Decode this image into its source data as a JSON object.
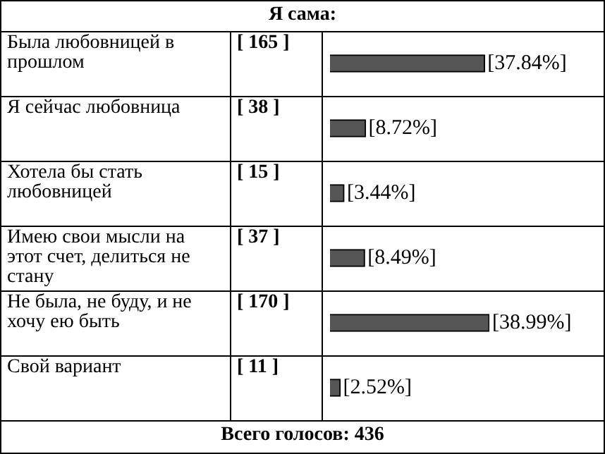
{
  "chart_data": {
    "type": "bar",
    "orientation": "horizontal",
    "title": "Я сама:",
    "categories": [
      "Была любовницей в прошлом",
      "Я сейчас любовница",
      "Хотела бы стать любовницей",
      "Имею свои мысли на этот счет, делиться не стану",
      "Не была, не буду, и не хочу ею быть",
      "Свой вариант"
    ],
    "values": [
      37.84,
      8.72,
      3.44,
      8.49,
      38.99,
      2.52
    ],
    "value_labels": [
      "[37.84%]",
      "[8.72%]",
      "[3.44%]",
      "[8.49%]",
      "[38.99%]",
      "[2.52%]"
    ],
    "color": "#555555",
    "annotations": [
      "[ 165 ]",
      "[ 38 ]",
      "[ 15 ]",
      "[ 37 ]",
      "[ 170 ]",
      "[ 11 ]",
      "Всего голосов: 436"
    ],
    "legend": false,
    "tick_labels": false
  }
}
